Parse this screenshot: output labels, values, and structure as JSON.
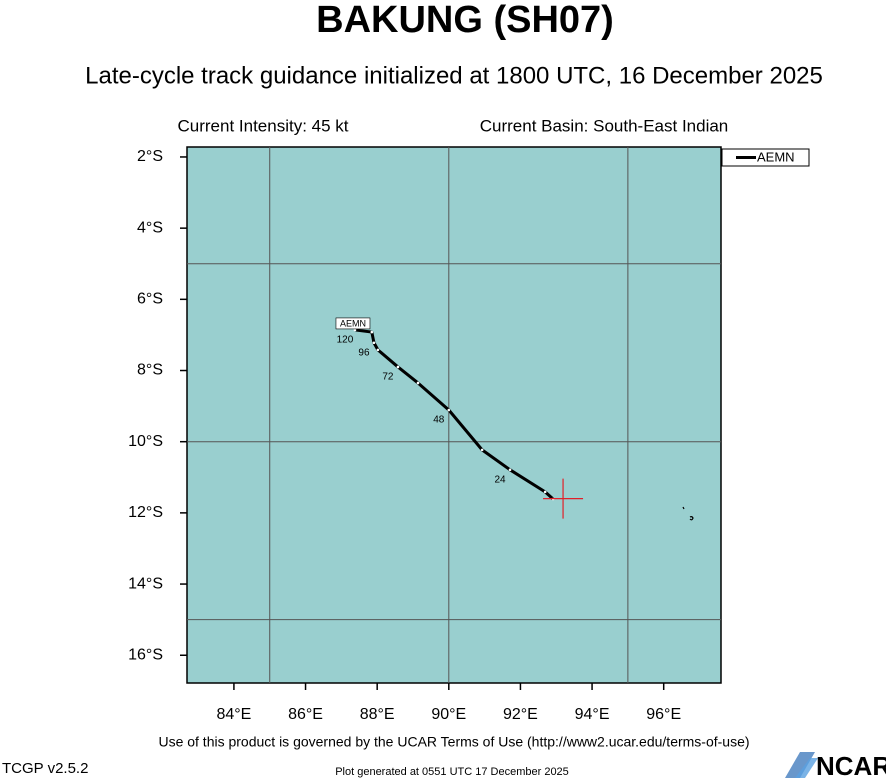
{
  "chart_data": {
    "type": "line",
    "title": "BAKUNG (SH07)",
    "subtitle": "Late-cycle track guidance initialized at 1800 UTC, 16 December 2025",
    "info_left": "Current Intensity: 45 kt",
    "info_right": "Current Basin: South-East Indian",
    "x": [
      92.91,
      92.69,
      91.71,
      90.93,
      90.0,
      89.14,
      88.58,
      88.02,
      87.91,
      87.85,
      87.38
    ],
    "series": [
      {
        "name": "AEMN",
        "color": "#000000",
        "values": [
          -11.61,
          -11.41,
          -10.79,
          -10.23,
          -9.11,
          -8.35,
          -7.9,
          -7.42,
          -7.22,
          -6.92,
          -6.86
        ],
        "point_labels": [
          null,
          null,
          "24",
          null,
          "48",
          null,
          "72",
          null,
          "96",
          null,
          "120"
        ]
      }
    ],
    "current_position": {
      "x": 93.19,
      "y": -11.6,
      "color": "#e0202a"
    },
    "xlim": [
      82.69,
      97.6
    ],
    "ylim": [
      -16.78,
      -1.72
    ],
    "xticks": [
      {
        "value": 84,
        "label": "84°E"
      },
      {
        "value": 86,
        "label": "86°E"
      },
      {
        "value": 88,
        "label": "88°E"
      },
      {
        "value": 90,
        "label": "90°E"
      },
      {
        "value": 92,
        "label": "92°E"
      },
      {
        "value": 94,
        "label": "94°E"
      },
      {
        "value": 96,
        "label": "96°E"
      }
    ],
    "yticks": [
      {
        "value": -2,
        "label": "2°S"
      },
      {
        "value": -4,
        "label": "4°S"
      },
      {
        "value": -6,
        "label": "6°S"
      },
      {
        "value": -8,
        "label": "8°S"
      },
      {
        "value": -10,
        "label": "10°S"
      },
      {
        "value": -12,
        "label": "12°S"
      },
      {
        "value": -14,
        "label": "14°S"
      },
      {
        "value": -16,
        "label": "16°S"
      }
    ],
    "grid_x": [
      85,
      90,
      95
    ],
    "grid_y": [
      -5,
      -10,
      -15
    ],
    "background": "#99cfcf",
    "legend": "upper right outside",
    "footer": "Use of this product is governed by the UCAR Terms of Use (http://www2.ucar.edu/terms-of-use)",
    "version": "TCGP v2.5.2",
    "generated": "Plot generated at 0551 UTC   17 December 2025",
    "logo": "NCAR"
  }
}
